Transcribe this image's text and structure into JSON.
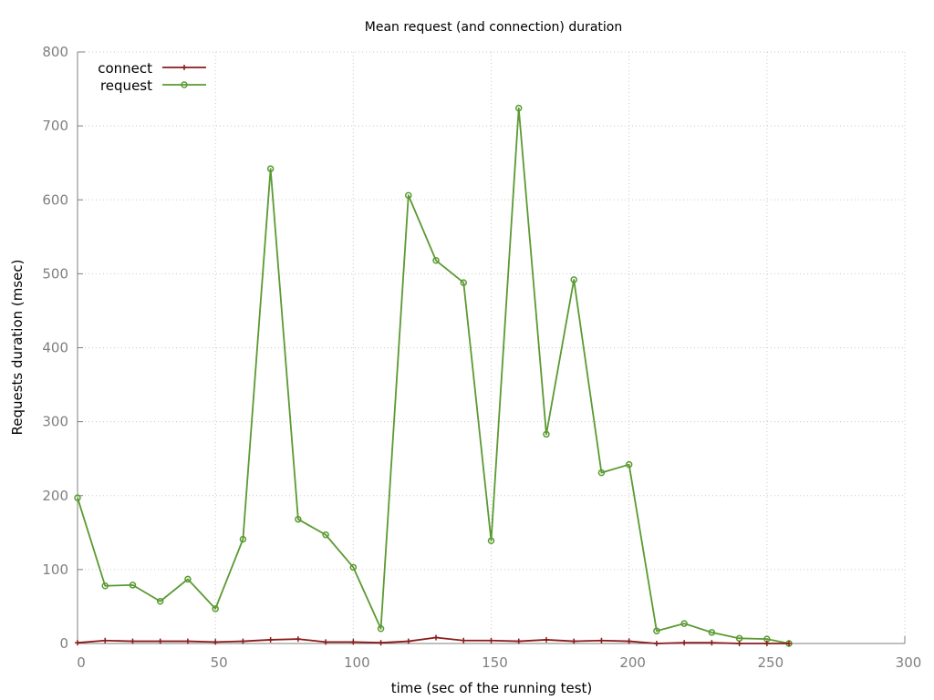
{
  "chart_data": {
    "type": "line",
    "title": "Mean request (and connection) duration",
    "xlabel": "time (sec of the running test)",
    "ylabel": "Requests duration (msec)",
    "xlim": [
      0,
      300
    ],
    "ylim": [
      0,
      800
    ],
    "xticks": [
      0,
      50,
      100,
      150,
      200,
      250,
      300
    ],
    "yticks": [
      0,
      100,
      200,
      300,
      400,
      500,
      600,
      700,
      800
    ],
    "grid": true,
    "legend_position": "top-left",
    "series": [
      {
        "name": "connect",
        "color": "#8b1a1a",
        "marker": "plus",
        "points": [
          [
            0,
            1
          ],
          [
            10,
            4
          ],
          [
            20,
            3
          ],
          [
            30,
            3
          ],
          [
            40,
            3
          ],
          [
            50,
            2
          ],
          [
            60,
            3
          ],
          [
            70,
            5
          ],
          [
            80,
            6
          ],
          [
            90,
            2
          ],
          [
            100,
            2
          ],
          [
            110,
            1
          ],
          [
            120,
            3
          ],
          [
            130,
            8
          ],
          [
            140,
            4
          ],
          [
            150,
            4
          ],
          [
            160,
            3
          ],
          [
            170,
            5
          ],
          [
            180,
            3
          ],
          [
            190,
            4
          ],
          [
            200,
            3
          ],
          [
            210,
            0
          ],
          [
            220,
            1
          ],
          [
            230,
            1
          ],
          [
            240,
            0
          ],
          [
            250,
            0
          ],
          [
            258,
            0
          ]
        ]
      },
      {
        "name": "request",
        "color": "#5a9a32",
        "marker": "circle",
        "points": [
          [
            0,
            197
          ],
          [
            10,
            78
          ],
          [
            20,
            79
          ],
          [
            30,
            57
          ],
          [
            40,
            87
          ],
          [
            50,
            47
          ],
          [
            60,
            141
          ],
          [
            70,
            642
          ],
          [
            80,
            168
          ],
          [
            90,
            147
          ],
          [
            100,
            103
          ],
          [
            110,
            20
          ],
          [
            120,
            606
          ],
          [
            130,
            518
          ],
          [
            140,
            488
          ],
          [
            150,
            139
          ],
          [
            160,
            724
          ],
          [
            170,
            283
          ],
          [
            180,
            492
          ],
          [
            190,
            231
          ],
          [
            200,
            242
          ],
          [
            210,
            17
          ],
          [
            220,
            27
          ],
          [
            230,
            15
          ],
          [
            240,
            7
          ],
          [
            250,
            6
          ],
          [
            258,
            0
          ]
        ]
      }
    ]
  }
}
